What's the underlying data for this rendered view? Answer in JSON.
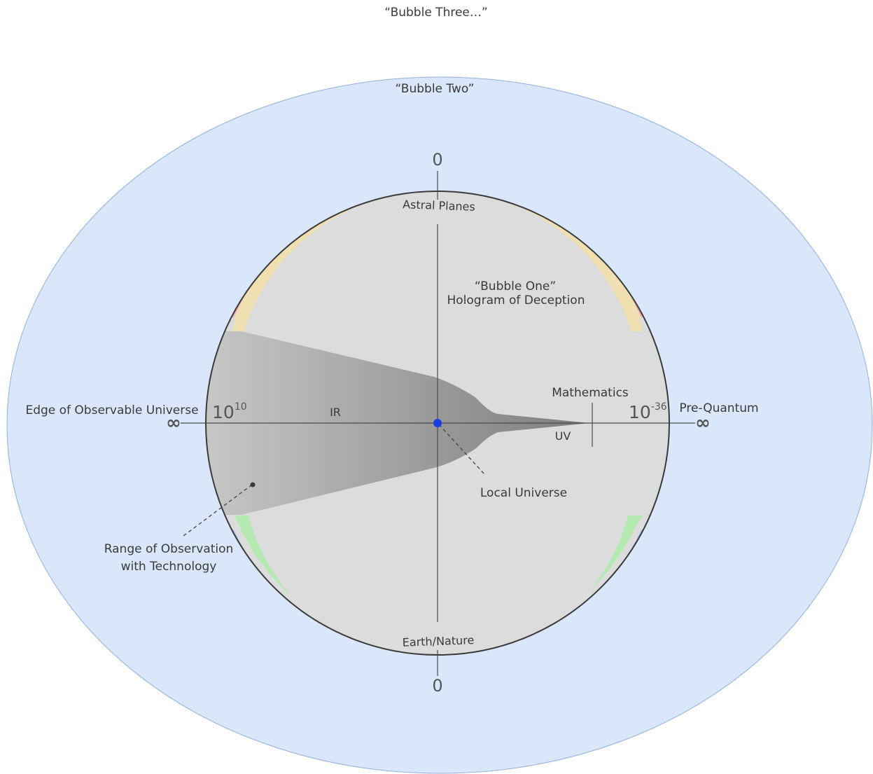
{
  "labels": {
    "bubble_three": "“Bubble Three…”",
    "bubble_two": "“Bubble Two”",
    "bubble_one": "“Bubble One”",
    "hologram": "Hologram of Deception",
    "astral_planes": "Astral Planes",
    "earth_nature": "Earth/Nature",
    "top_zero": "0",
    "bottom_zero": "0",
    "edge_universe": "Edge of Observable Universe",
    "pre_quantum": "Pre-Quantum",
    "left_scale_base": "10",
    "left_scale_exp": "10",
    "right_scale_base": "10",
    "right_scale_exp": "-36",
    "ir": "IR",
    "uv": "UV",
    "mathematics": "Mathematics",
    "local_universe": "Local Universe",
    "range_line1": "Range of Observation",
    "range_line2": "with Technology",
    "infinity_left": "∞",
    "infinity_right": "∞"
  },
  "colors": {
    "outer_bubble_fill": "#dae7fb",
    "outer_bubble_stroke": "#8fb0d8",
    "inner_bubble_fill": "#dcdcdc",
    "inner_bubble_stroke": "#3a3a3a",
    "astral_band": "#f1a9aa",
    "yellow_band": "#f0dfb0",
    "green_band": "#b5e9b2",
    "blue_band": "#a8c4ec",
    "center_dot": "#1a3fe0"
  }
}
